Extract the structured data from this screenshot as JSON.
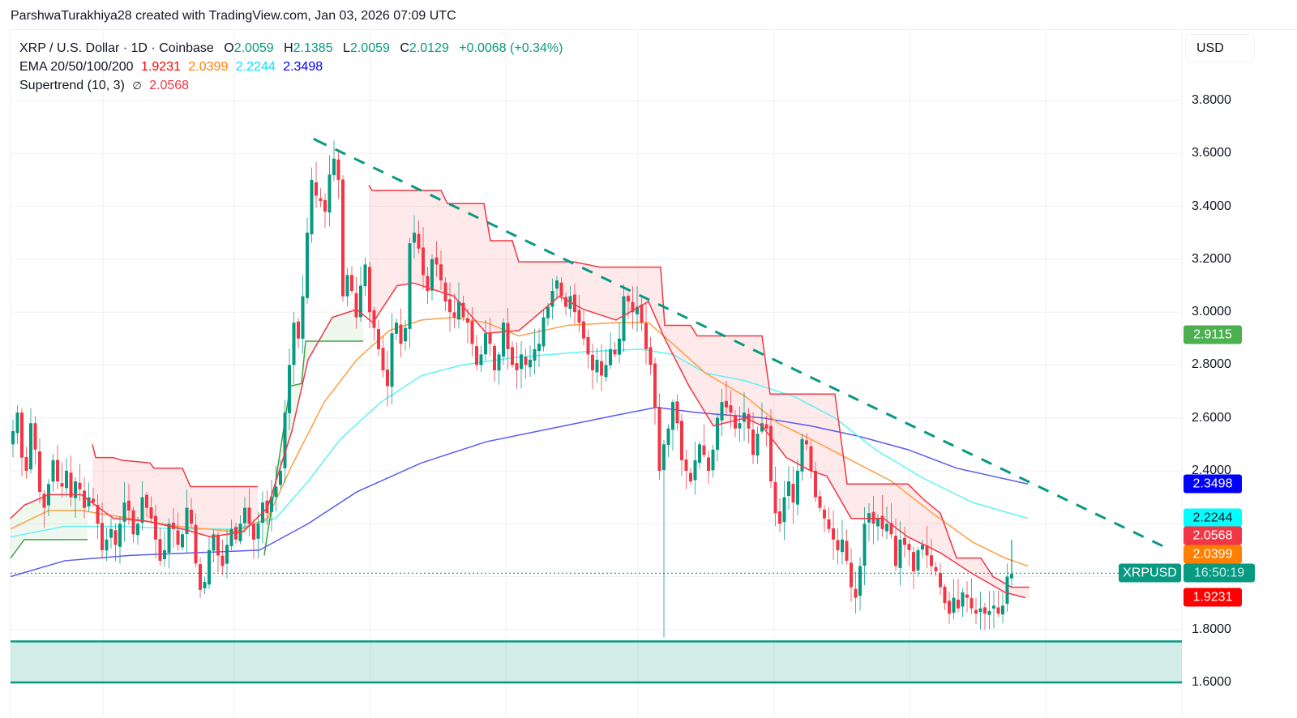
{
  "credit": "ParshwaTurakhiya28 created with TradingView.com, Jan 03, 2026 07:09 UTC",
  "legend": {
    "symbol_line": "XRP / U.S. Dollar · 1D · Coinbase",
    "open_k": "O",
    "open": "2.0059",
    "high_k": "H",
    "high": "2.1385",
    "low_k": "L",
    "low": "2.0059",
    "close_k": "C",
    "close": "2.0129",
    "change": "+0.0068 (+0.34%)",
    "ema_label": "EMA 20/50/100/200",
    "ema20": "1.9231",
    "ema50": "2.0399",
    "ema100": "2.2244",
    "ema200": "2.3498",
    "supertrend_label": "Supertrend (10, 3)",
    "supertrend_icon": "∅",
    "supertrend": "2.0568"
  },
  "currency_button": "USD",
  "price_tags": {
    "supertrend_up": {
      "text": "2.9115",
      "bg": "#4caf50",
      "fg": "#ffffff",
      "price": 2.9115
    },
    "ema200": {
      "text": "2.3498",
      "bg": "#0000ff",
      "fg": "#ffffff",
      "price": 2.3498
    },
    "ema100": {
      "text": "2.2244",
      "bg": "#00ffff",
      "fg": "#131722",
      "price": 2.2244
    },
    "supertrend": {
      "text": "2.0568",
      "bg": "#f23645",
      "fg": "#ffffff",
      "price": 2.0568
    },
    "ema50": {
      "text": "2.0399",
      "bg": "#ff7f00",
      "fg": "#ffffff",
      "price": 2.0399
    },
    "ema20": {
      "text": "1.9231",
      "bg": "#ff0000",
      "fg": "#ffffff",
      "price": 1.9231
    }
  },
  "symbol_tag": {
    "text": "XRPUSD",
    "countdown": "16:50:19",
    "bg": "#089981",
    "price": 2.0129
  },
  "colors": {
    "up": "#089981",
    "down": "#f23645",
    "ema20": "#f23645",
    "ema50": "#ff9d42",
    "ema100": "#5ff3f3",
    "ema200": "#5b5bf0",
    "st_up": "#43a047",
    "st_down": "#f23645",
    "st_up_fill": "rgba(76,175,80,0.09)",
    "st_down_fill": "rgba(242,54,69,0.11)",
    "trendline": "#089981",
    "zone_fill": "rgba(8,153,129,0.18)",
    "zone_line": "#089981",
    "grid": "#f0f0f0"
  },
  "chart_data": {
    "type": "candlestick",
    "title": "XRP / U.S. Dollar · 1D · Coinbase",
    "ylabel": "USD",
    "ylim": [
      1.55,
      4.0
    ],
    "yticks": [
      "3.8000",
      "3.6000",
      "3.4000",
      "3.2000",
      "3.0000",
      "2.8000",
      "2.6000",
      "2.4000",
      "2.2000",
      "2.0000",
      "1.8000",
      "1.6000"
    ],
    "ytick_values": [
      3.8,
      3.6,
      3.4,
      3.2,
      3.0,
      2.8,
      2.6,
      2.4,
      2.2,
      2.0,
      1.8,
      1.6
    ],
    "grid": true,
    "x_start": 16,
    "x_step": 5.5,
    "closes": [
      2.55,
      2.62,
      2.45,
      2.4,
      2.58,
      2.48,
      2.32,
      2.26,
      2.35,
      2.44,
      2.36,
      2.34,
      2.4,
      2.3,
      2.36,
      2.33,
      2.26,
      2.3,
      2.28,
      2.2,
      2.1,
      2.14,
      2.18,
      2.12,
      2.2,
      2.28,
      2.25,
      2.16,
      2.2,
      2.3,
      2.26,
      2.22,
      2.14,
      2.06,
      2.1,
      2.2,
      2.18,
      2.12,
      2.16,
      2.26,
      2.2,
      2.05,
      1.95,
      1.98,
      2.1,
      2.16,
      2.08,
      2.04,
      2.12,
      2.18,
      2.14,
      2.2,
      2.26,
      2.2,
      2.14,
      2.2,
      2.28,
      2.24,
      2.3,
      2.34,
      2.4,
      2.62,
      2.8,
      2.96,
      2.9,
      3.06,
      3.3,
      3.5,
      3.44,
      3.42,
      3.38,
      3.52,
      3.58,
      3.5,
      3.06,
      3.14,
      3.08,
      2.98,
      3.1,
      3.18,
      3.0,
      2.94,
      2.86,
      2.78,
      2.72,
      2.92,
      2.96,
      2.88,
      2.94,
      3.26,
      3.3,
      3.24,
      3.14,
      3.08,
      3.2,
      3.18,
      3.12,
      3.04,
      3.0,
      2.98,
      3.04,
      2.98,
      2.96,
      2.88,
      2.8,
      2.84,
      2.92,
      2.88,
      2.78,
      2.84,
      2.96,
      2.86,
      2.8,
      2.78,
      2.84,
      2.8,
      2.82,
      2.86,
      2.88,
      2.98,
      3.02,
      3.08,
      3.12,
      3.06,
      3.02,
      3.06,
      3.0,
      2.96,
      2.9,
      2.84,
      2.78,
      2.82,
      2.76,
      2.8,
      2.86,
      2.84,
      2.9,
      3.06,
      3.04,
      3.0,
      3.02,
      2.96,
      2.86,
      2.8,
      2.64,
      2.4,
      2.5,
      2.56,
      2.66,
      2.58,
      2.44,
      2.4,
      2.36,
      2.44,
      2.5,
      2.46,
      2.4,
      2.48,
      2.6,
      2.66,
      2.64,
      2.62,
      2.56,
      2.58,
      2.62,
      2.56,
      2.46,
      2.54,
      2.58,
      2.56,
      2.36,
      2.24,
      2.2,
      2.3,
      2.36,
      2.28,
      2.4,
      2.52,
      2.5,
      2.4,
      2.3,
      2.26,
      2.22,
      2.18,
      2.14,
      2.1,
      2.14,
      2.06,
      1.96,
      1.92,
      2.04,
      2.2,
      2.24,
      2.2,
      2.22,
      2.18,
      2.2,
      2.16,
      2.04,
      2.14,
      2.12,
      2.1,
      2.02,
      2.1,
      2.12,
      2.08,
      2.04,
      2.02,
      1.96,
      1.9,
      1.86,
      1.92,
      1.88,
      1.94,
      1.92,
      1.88,
      1.86,
      1.88,
      1.86,
      1.87,
      1.89,
      1.86,
      1.89,
      2.0,
      2.01
    ],
    "ema20": [
      [
        13,
        2.22
      ],
      [
        30,
        2.27
      ],
      [
        60,
        2.31
      ],
      [
        100,
        2.31
      ],
      [
        140,
        2.22
      ],
      [
        180,
        2.21
      ],
      [
        225,
        2.18
      ],
      [
        260,
        2.15
      ],
      [
        300,
        2.17
      ],
      [
        330,
        2.26
      ],
      [
        360,
        2.55
      ],
      [
        380,
        2.82
      ],
      [
        410,
        2.98
      ],
      [
        440,
        3.01
      ],
      [
        460,
        2.96
      ],
      [
        490,
        3.1
      ],
      [
        510,
        3.11
      ],
      [
        560,
        3.06
      ],
      [
        600,
        2.92
      ],
      [
        640,
        2.93
      ],
      [
        690,
        3.06
      ],
      [
        720,
        3.01
      ],
      [
        760,
        2.97
      ],
      [
        800,
        3.04
      ],
      [
        820,
        2.9
      ],
      [
        850,
        2.72
      ],
      [
        880,
        2.57
      ],
      [
        920,
        2.6
      ],
      [
        940,
        2.57
      ],
      [
        970,
        2.45
      ],
      [
        1000,
        2.4
      ],
      [
        1020,
        2.38
      ],
      [
        1050,
        2.22
      ],
      [
        1090,
        2.22
      ],
      [
        1120,
        2.15
      ],
      [
        1160,
        2.09
      ],
      [
        1200,
        2.01
      ],
      [
        1240,
        1.94
      ],
      [
        1265,
        1.92
      ]
    ],
    "ema50": [
      [
        13,
        2.18
      ],
      [
        60,
        2.25
      ],
      [
        100,
        2.25
      ],
      [
        160,
        2.22
      ],
      [
        220,
        2.19
      ],
      [
        290,
        2.17
      ],
      [
        330,
        2.22
      ],
      [
        360,
        2.42
      ],
      [
        400,
        2.66
      ],
      [
        440,
        2.82
      ],
      [
        480,
        2.93
      ],
      [
        520,
        2.97
      ],
      [
        560,
        2.98
      ],
      [
        600,
        2.96
      ],
      [
        640,
        2.91
      ],
      [
        700,
        2.95
      ],
      [
        760,
        2.96
      ],
      [
        800,
        2.96
      ],
      [
        830,
        2.88
      ],
      [
        870,
        2.77
      ],
      [
        920,
        2.68
      ],
      [
        960,
        2.58
      ],
      [
        1000,
        2.52
      ],
      [
        1050,
        2.44
      ],
      [
        1100,
        2.36
      ],
      [
        1150,
        2.24
      ],
      [
        1200,
        2.13
      ],
      [
        1240,
        2.07
      ],
      [
        1268,
        2.04
      ]
    ],
    "ema100": [
      [
        13,
        2.15
      ],
      [
        80,
        2.19
      ],
      [
        150,
        2.19
      ],
      [
        220,
        2.18
      ],
      [
        290,
        2.18
      ],
      [
        340,
        2.22
      ],
      [
        380,
        2.36
      ],
      [
        420,
        2.52
      ],
      [
        470,
        2.66
      ],
      [
        520,
        2.76
      ],
      [
        570,
        2.8
      ],
      [
        640,
        2.83
      ],
      [
        720,
        2.85
      ],
      [
        790,
        2.86
      ],
      [
        830,
        2.84
      ],
      [
        870,
        2.77
      ],
      [
        920,
        2.74
      ],
      [
        980,
        2.68
      ],
      [
        1030,
        2.6
      ],
      [
        1080,
        2.48
      ],
      [
        1140,
        2.37
      ],
      [
        1200,
        2.28
      ],
      [
        1268,
        2.22
      ]
    ],
    "ema200": [
      [
        13,
        2.0
      ],
      [
        80,
        2.06
      ],
      [
        160,
        2.08
      ],
      [
        240,
        2.09
      ],
      [
        320,
        2.1
      ],
      [
        380,
        2.2
      ],
      [
        440,
        2.32
      ],
      [
        520,
        2.43
      ],
      [
        600,
        2.51
      ],
      [
        680,
        2.56
      ],
      [
        760,
        2.61
      ],
      [
        810,
        2.64
      ],
      [
        860,
        2.62
      ],
      [
        940,
        2.6
      ],
      [
        1000,
        2.57
      ],
      [
        1060,
        2.53
      ],
      [
        1120,
        2.48
      ],
      [
        1180,
        2.41
      ],
      [
        1268,
        2.35
      ]
    ],
    "supertrend_segments": [
      {
        "dir": "up",
        "points": [
          [
            13,
            2.07
          ],
          [
            18,
            2.09
          ],
          [
            30,
            2.14
          ],
          [
            108,
            2.14
          ]
        ]
      },
      {
        "dir": "down",
        "points": [
          [
            114,
            2.5
          ],
          [
            118,
            2.45
          ],
          [
            140,
            2.45
          ],
          [
            150,
            2.44
          ],
          [
            185,
            2.43
          ],
          [
            190,
            2.41
          ],
          [
            225,
            2.41
          ],
          [
            235,
            2.34
          ],
          [
            318,
            2.34
          ]
        ]
      },
      {
        "dir": "up",
        "points": [
          [
            326,
            2.08
          ],
          [
            358,
            2.72
          ],
          [
            372,
            2.73
          ],
          [
            377,
            2.89
          ],
          [
            448,
            2.89
          ]
        ]
      },
      {
        "dir": "down",
        "points": [
          [
            455,
            3.48
          ],
          [
            459,
            3.46
          ],
          [
            544,
            3.46
          ],
          [
            552,
            3.41
          ],
          [
            597,
            3.41
          ],
          [
            605,
            3.27
          ],
          [
            632,
            3.27
          ],
          [
            640,
            3.19
          ],
          [
            702,
            3.19
          ],
          [
            708,
            3.19
          ],
          [
            740,
            3.17
          ],
          [
            815,
            3.17
          ],
          [
            820,
            2.95
          ],
          [
            852,
            2.95
          ],
          [
            860,
            2.91
          ],
          [
            940,
            2.91
          ],
          [
            950,
            2.69
          ],
          [
            1030,
            2.69
          ],
          [
            1045,
            2.35
          ],
          [
            1120,
            2.35
          ],
          [
            1140,
            2.29
          ],
          [
            1160,
            2.24
          ],
          [
            1180,
            2.07
          ],
          [
            1210,
            2.07
          ],
          [
            1225,
            2.0
          ],
          [
            1248,
            1.96
          ],
          [
            1270,
            1.96
          ]
        ]
      }
    ],
    "trendline": {
      "from": [
        390,
        3.65
      ],
      "to": [
        1445,
        2.1
      ],
      "style": "dashed"
    },
    "support_zone": {
      "top": 1.755,
      "bottom": 1.6,
      "x_from": 13,
      "x_to": 1458
    },
    "last_price_line": 2.0129,
    "big_wick": {
      "x": 820,
      "low": 1.77
    }
  }
}
